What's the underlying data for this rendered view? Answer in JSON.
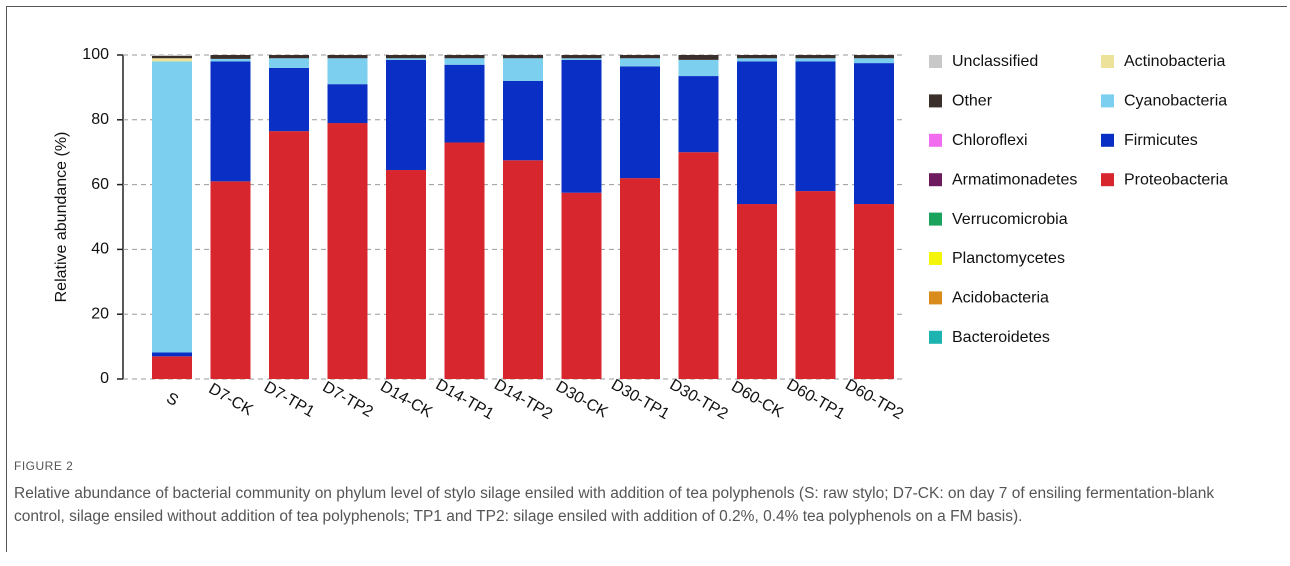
{
  "figure_label": "FIGURE 2",
  "caption": "Relative abundance of bacterial community on phylum level of stylo silage ensiled with addition of tea polyphenols (S: raw stylo; D7-CK: on day 7 of ensiling fermentation-blank control, silage ensiled without addition of tea polyphenols; TP1 and TP2: silage ensiled with addition of 0.2%, 0.4% tea polyphenols on a FM basis).",
  "chart_data": {
    "type": "stacked_bar",
    "y_label": "Relative abundance (%)",
    "categories": [
      "S",
      "D7-CK",
      "D7-TP1",
      "D7-TP2",
      "D14-CK",
      "D14-TP1",
      "D14-TP2",
      "D30-CK",
      "D30-TP1",
      "D30-TP2",
      "D60-CK",
      "D60-TP1",
      "D60-TP2"
    ],
    "series": [
      {
        "name": "Proteobacteria",
        "color": "#d8262e",
        "values": [
          7,
          61,
          76.5,
          79,
          64.5,
          73,
          67.5,
          57.5,
          62,
          70,
          54,
          58,
          54
        ]
      },
      {
        "name": "Firmicutes",
        "color": "#0a2fc4",
        "values": [
          1.2,
          37,
          19.5,
          12,
          34,
          24,
          24.5,
          41,
          34.5,
          23.5,
          44,
          40,
          43.5
        ]
      },
      {
        "name": "Cyanobacteria",
        "color": "#7ccfee",
        "values": [
          89.8,
          0.8,
          3,
          8,
          0.5,
          2,
          7,
          0.5,
          2.5,
          5,
          1,
          1,
          1.5
        ]
      },
      {
        "name": "Actinobacteria",
        "color": "#ede29a",
        "values": [
          1,
          0,
          0,
          0,
          0,
          0,
          0,
          0,
          0,
          0,
          0,
          0,
          0
        ]
      },
      {
        "name": "Bacteroidetes",
        "color": "#1db3b0",
        "values": [
          0,
          0,
          0,
          0,
          0,
          0,
          0,
          0,
          0,
          0,
          0,
          0,
          0
        ]
      },
      {
        "name": "Acidobacteria",
        "color": "#d98c1c",
        "values": [
          0,
          0,
          0,
          0,
          0,
          0,
          0,
          0,
          0,
          0,
          0,
          0,
          0
        ]
      },
      {
        "name": "Planctomycetes",
        "color": "#f5f50a",
        "values": [
          0,
          0,
          0,
          0,
          0,
          0,
          0,
          0,
          0,
          0,
          0,
          0,
          0
        ]
      },
      {
        "name": "Verrucomicrobia",
        "color": "#1aa35c",
        "values": [
          0,
          0,
          0,
          0,
          0,
          0,
          0,
          0,
          0,
          0,
          0,
          0,
          0
        ]
      },
      {
        "name": "Armatimonadetes",
        "color": "#6e1a5e",
        "values": [
          0,
          0,
          0,
          0,
          0,
          0,
          0,
          0,
          0,
          0,
          0,
          0,
          0
        ]
      },
      {
        "name": "Chloroflexi",
        "color": "#f26cf0",
        "values": [
          0,
          0,
          0,
          0,
          0,
          0,
          0,
          0,
          0,
          0,
          0,
          0,
          0
        ]
      },
      {
        "name": "Other",
        "color": "#3a2f2a",
        "values": [
          0.7,
          1.2,
          1,
          1,
          1,
          1,
          1,
          1,
          1,
          1.5,
          1,
          1,
          1
        ]
      },
      {
        "name": "Unclassified",
        "color": "#c8c8c8",
        "values": [
          0.3,
          0,
          0,
          0,
          0,
          0,
          0,
          0,
          0,
          0,
          0,
          0,
          0
        ]
      }
    ],
    "ylim": [
      0,
      100
    ],
    "yticks": [
      0,
      20,
      40,
      60,
      80,
      100
    ],
    "grid": true,
    "legend": "right"
  }
}
